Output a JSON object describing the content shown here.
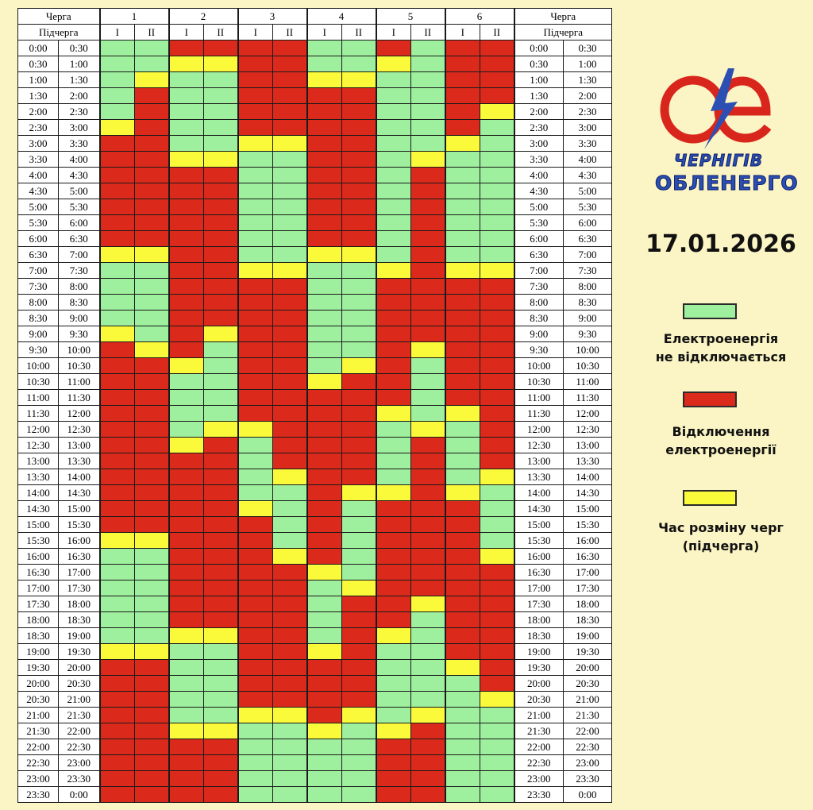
{
  "table": {
    "queue_label": "Черга",
    "subqueue_label": "Підчерга",
    "queues": [
      "1",
      "2",
      "3",
      "4",
      "5",
      "6"
    ],
    "subqueues": [
      "I",
      "II"
    ],
    "rows": [
      {
        "from": "0:00",
        "to": "0:30",
        "s": "GGRRRRGGRGRR"
      },
      {
        "from": "0:30",
        "to": "1:00",
        "s": "GGYYRRGGYGRR"
      },
      {
        "from": "1:00",
        "to": "1:30",
        "s": "GYGGRRYYGGRR"
      },
      {
        "from": "1:30",
        "to": "2:00",
        "s": "GRGGRRRRGGRR"
      },
      {
        "from": "2:00",
        "to": "2:30",
        "s": "GRGGRRRRGGRY"
      },
      {
        "from": "2:30",
        "to": "3:00",
        "s": "YRGGRRRRGGRG"
      },
      {
        "from": "3:00",
        "to": "3:30",
        "s": "RRGGYYRRGGYG"
      },
      {
        "from": "3:30",
        "to": "4:00",
        "s": "RRYYGGRRGYGG"
      },
      {
        "from": "4:00",
        "to": "4:30",
        "s": "RRRRGGRRGRGG"
      },
      {
        "from": "4:30",
        "to": "5:00",
        "s": "RRRRGGRRGRGG"
      },
      {
        "from": "5:00",
        "to": "5:30",
        "s": "RRRRGGRRGRGG"
      },
      {
        "from": "5:30",
        "to": "6:00",
        "s": "RRRRGGRRGRGG"
      },
      {
        "from": "6:00",
        "to": "6:30",
        "s": "RRRRGGRRGRGG"
      },
      {
        "from": "6:30",
        "to": "7:00",
        "s": "YYRRGGYYGRGG"
      },
      {
        "from": "7:00",
        "to": "7:30",
        "s": "GGRRYYGGYRYY"
      },
      {
        "from": "7:30",
        "to": "8:00",
        "s": "GGRRRRGGRRRR"
      },
      {
        "from": "8:00",
        "to": "8:30",
        "s": "GGRRRRGGRRRR"
      },
      {
        "from": "8:30",
        "to": "9:00",
        "s": "GGRRRRGGRRRR"
      },
      {
        "from": "9:00",
        "to": "9:30",
        "s": "YGRYRRGGRRRR"
      },
      {
        "from": "9:30",
        "to": "10:00",
        "s": "RYRGRRGGRYRR"
      },
      {
        "from": "10:00",
        "to": "10:30",
        "s": "RRYGRRGYRGRR"
      },
      {
        "from": "10:30",
        "to": "11:00",
        "s": "RRGGRRYRRGRR"
      },
      {
        "from": "11:00",
        "to": "11:30",
        "s": "RRGGRRRRRGRR"
      },
      {
        "from": "11:30",
        "to": "12:00",
        "s": "RRGGRRRRYGYR"
      },
      {
        "from": "12:00",
        "to": "12:30",
        "s": "RRGYYRRRGYGR"
      },
      {
        "from": "12:30",
        "to": "13:00",
        "s": "RRYRGRRRGRGR"
      },
      {
        "from": "13:00",
        "to": "13:30",
        "s": "RRRRGRRRGRGR"
      },
      {
        "from": "13:30",
        "to": "14:00",
        "s": "RRRRGYRRGRGY"
      },
      {
        "from": "14:00",
        "to": "14:30",
        "s": "RRRRGGRYYRYG"
      },
      {
        "from": "14:30",
        "to": "15:00",
        "s": "RRRRYGRGRRRG"
      },
      {
        "from": "15:00",
        "to": "15:30",
        "s": "RRRRRGRGRRRG"
      },
      {
        "from": "15:30",
        "to": "16:00",
        "s": "YYRRRGRGRRRG"
      },
      {
        "from": "16:00",
        "to": "16:30",
        "s": "GGRRRYRGRRRY"
      },
      {
        "from": "16:30",
        "to": "17:00",
        "s": "GGRRRRYGRRRR"
      },
      {
        "from": "17:00",
        "to": "17:30",
        "s": "GGRRRRGYRRRR"
      },
      {
        "from": "17:30",
        "to": "18:00",
        "s": "GGRRRRGRRYRR"
      },
      {
        "from": "18:00",
        "to": "18:30",
        "s": "GGRRRRGRRGRR"
      },
      {
        "from": "18:30",
        "to": "19:00",
        "s": "GGYYRRGRYGRR"
      },
      {
        "from": "19:00",
        "to": "19:30",
        "s": "YYGGRRYRGGRR"
      },
      {
        "from": "19:30",
        "to": "20:00",
        "s": "RRGGRRRRGGYR"
      },
      {
        "from": "20:00",
        "to": "20:30",
        "s": "RRGGRRRRGGGR"
      },
      {
        "from": "20:30",
        "to": "21:00",
        "s": "RRGGRRRRGGGY"
      },
      {
        "from": "21:00",
        "to": "21:30",
        "s": "RRGGYYRYGYGG"
      },
      {
        "from": "21:30",
        "to": "22:00",
        "s": "RRYYGGYGYRGG"
      },
      {
        "from": "22:00",
        "to": "22:30",
        "s": "RRRRGGGGRRGG"
      },
      {
        "from": "22:30",
        "to": "23:00",
        "s": "RRRRGGGGRRGG"
      },
      {
        "from": "23:00",
        "to": "23:30",
        "s": "RRRRGGGGRRGG"
      },
      {
        "from": "23:30",
        "to": "0:00",
        "s": "RRRRGGGGRRGG"
      }
    ]
  },
  "logo": {
    "brand_line1": "ЧЕРНІГІВ",
    "brand_line2": "ОБЛЕНЕРГО"
  },
  "date": "17.01.2026",
  "legend": {
    "on_line1": "Електроенергія",
    "on_line2": "не відключається",
    "off_line1": "Відключення",
    "off_line2": "електроенергії",
    "switch_line1": "Час розміну черг",
    "switch_line2": "(підчерга)"
  },
  "colors": {
    "on": "#9ef09e",
    "off": "#db2a1c",
    "switch": "#fafa3a",
    "background": "#fbf4c4",
    "logo_red": "#d9261c",
    "logo_blue": "#2b4fb3"
  }
}
